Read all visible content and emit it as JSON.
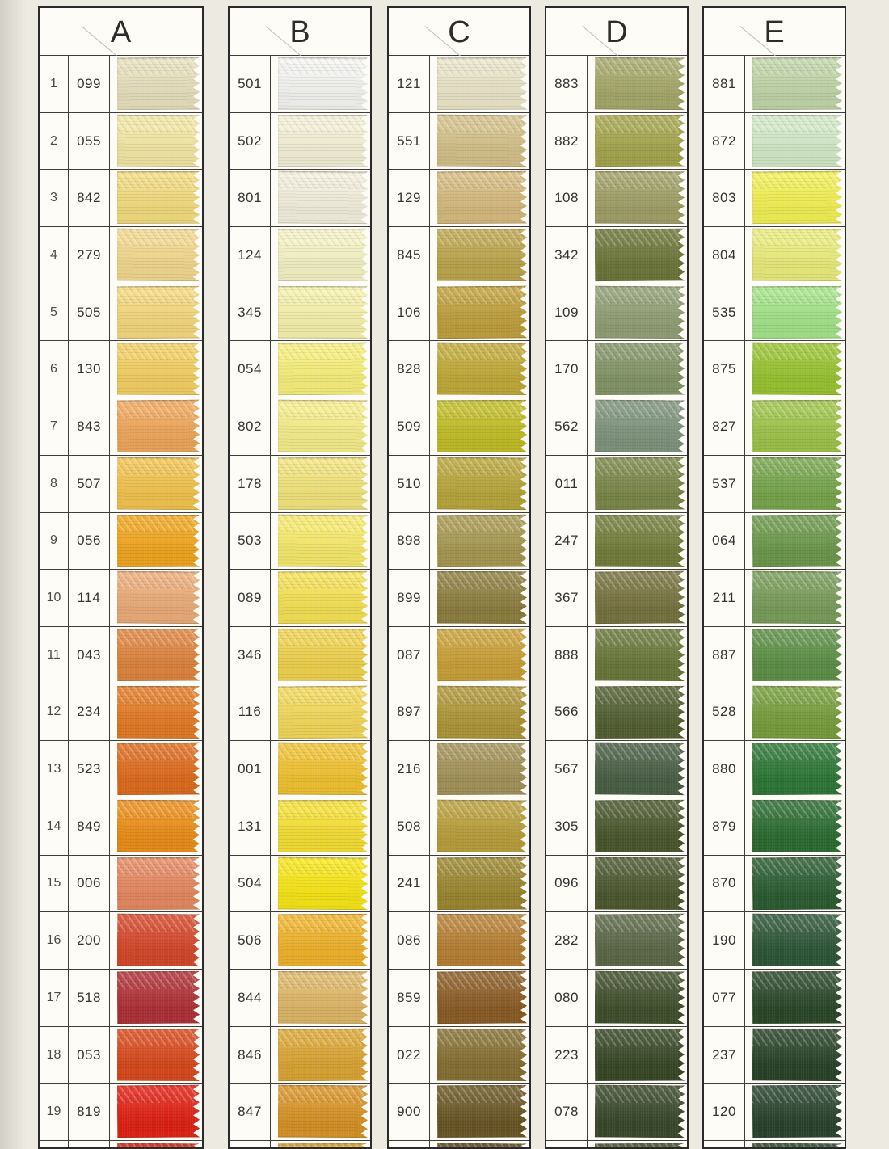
{
  "row_numbers": [
    "1",
    "2",
    "3",
    "4",
    "5",
    "6",
    "7",
    "8",
    "9",
    "10",
    "11",
    "12",
    "13",
    "14",
    "15",
    "16",
    "17",
    "18",
    "19"
  ],
  "columns": [
    {
      "letter": "A",
      "has_row_numbers": true,
      "swatches": [
        {
          "code": "099",
          "color": "#ebe3c0"
        },
        {
          "code": "055",
          "color": "#f6eba6"
        },
        {
          "code": "842",
          "color": "#f6df80"
        },
        {
          "code": "279",
          "color": "#f7dc90"
        },
        {
          "code": "505",
          "color": "#f9db7e"
        },
        {
          "code": "130",
          "color": "#f7d263"
        },
        {
          "code": "843",
          "color": "#f3a95c"
        },
        {
          "code": "507",
          "color": "#f6c64f"
        },
        {
          "code": "056",
          "color": "#f5a81e"
        },
        {
          "code": "114",
          "color": "#efae79"
        },
        {
          "code": "043",
          "color": "#e2863f"
        },
        {
          "code": "234",
          "color": "#e87c26"
        },
        {
          "code": "523",
          "color": "#e26d1e"
        },
        {
          "code": "849",
          "color": "#f09018"
        },
        {
          "code": "006",
          "color": "#e98a62"
        },
        {
          "code": "200",
          "color": "#d9482b"
        },
        {
          "code": "518",
          "color": "#b23138"
        },
        {
          "code": "053",
          "color": "#dd4a1d"
        },
        {
          "code": "819",
          "color": "#e52114"
        }
      ],
      "partial_next_color": "#da2312"
    },
    {
      "letter": "B",
      "has_row_numbers": false,
      "swatches": [
        {
          "code": "501",
          "color": "#f8f8f5"
        },
        {
          "code": "502",
          "color": "#f8f4da"
        },
        {
          "code": "801",
          "color": "#f7f3e1"
        },
        {
          "code": "124",
          "color": "#f9f6c8"
        },
        {
          "code": "345",
          "color": "#f9f4ad"
        },
        {
          "code": "054",
          "color": "#fbf37c"
        },
        {
          "code": "802",
          "color": "#faf18c"
        },
        {
          "code": "178",
          "color": "#f6e87d"
        },
        {
          "code": "503",
          "color": "#fbee6d"
        },
        {
          "code": "089",
          "color": "#f9e455"
        },
        {
          "code": "346",
          "color": "#f3d64e"
        },
        {
          "code": "116",
          "color": "#f7dc5a"
        },
        {
          "code": "001",
          "color": "#f5c631"
        },
        {
          "code": "131",
          "color": "#fae334"
        },
        {
          "code": "504",
          "color": "#fcea16"
        },
        {
          "code": "506",
          "color": "#f3b62a"
        },
        {
          "code": "844",
          "color": "#e2ba68"
        },
        {
          "code": "846",
          "color": "#dfa834"
        },
        {
          "code": "847",
          "color": "#dc9526"
        }
      ],
      "partial_next_color": "#e2a62e"
    },
    {
      "letter": "C",
      "has_row_numbers": false,
      "swatches": [
        {
          "code": "121",
          "color": "#eee8cb"
        },
        {
          "code": "551",
          "color": "#d8c48b"
        },
        {
          "code": "129",
          "color": "#d9bd7f"
        },
        {
          "code": "845",
          "color": "#bfa84e"
        },
        {
          "code": "106",
          "color": "#c2a23d"
        },
        {
          "code": "828",
          "color": "#c4ac38"
        },
        {
          "code": "509",
          "color": "#c5c026"
        },
        {
          "code": "510",
          "color": "#bba93c"
        },
        {
          "code": "898",
          "color": "#aa9b52"
        },
        {
          "code": "899",
          "color": "#8f8040"
        },
        {
          "code": "087",
          "color": "#cda338"
        },
        {
          "code": "897",
          "color": "#b29939"
        },
        {
          "code": "216",
          "color": "#a6955a"
        },
        {
          "code": "508",
          "color": "#bda23d"
        },
        {
          "code": "241",
          "color": "#9e8930"
        },
        {
          "code": "086",
          "color": "#ba8234"
        },
        {
          "code": "859",
          "color": "#8d5e26"
        },
        {
          "code": "022",
          "color": "#887233"
        },
        {
          "code": "900",
          "color": "#6c5826"
        }
      ],
      "partial_next_color": "#5c4a20"
    },
    {
      "letter": "D",
      "has_row_numbers": false,
      "swatches": [
        {
          "code": "883",
          "color": "#a8ab6b"
        },
        {
          "code": "882",
          "color": "#a8a84f"
        },
        {
          "code": "108",
          "color": "#a3a268"
        },
        {
          "code": "342",
          "color": "#6e783a"
        },
        {
          "code": "109",
          "color": "#93a277"
        },
        {
          "code": "170",
          "color": "#859768"
        },
        {
          "code": "562",
          "color": "#81977f"
        },
        {
          "code": "011",
          "color": "#7d894a"
        },
        {
          "code": "247",
          "color": "#75803c"
        },
        {
          "code": "367",
          "color": "#787440"
        },
        {
          "code": "888",
          "color": "#6c7a3b"
        },
        {
          "code": "566",
          "color": "#556233"
        },
        {
          "code": "567",
          "color": "#4b6147"
        },
        {
          "code": "305",
          "color": "#4c592e"
        },
        {
          "code": "096",
          "color": "#4e5930"
        },
        {
          "code": "282",
          "color": "#5e6a49"
        },
        {
          "code": "080",
          "color": "#41512d"
        },
        {
          "code": "223",
          "color": "#394927"
        },
        {
          "code": "078",
          "color": "#3a4a2b"
        }
      ],
      "partial_next_color": "#44522e"
    },
    {
      "letter": "E",
      "has_row_numbers": false,
      "swatches": [
        {
          "code": "881",
          "color": "#c3d8ab"
        },
        {
          "code": "872",
          "color": "#d6edca"
        },
        {
          "code": "803",
          "color": "#f7f455"
        },
        {
          "code": "804",
          "color": "#eef07d"
        },
        {
          "code": "535",
          "color": "#a6e78a"
        },
        {
          "code": "875",
          "color": "#9bc731"
        },
        {
          "code": "827",
          "color": "#a1c74b"
        },
        {
          "code": "537",
          "color": "#79a84e"
        },
        {
          "code": "064",
          "color": "#6e9b4d"
        },
        {
          "code": "211",
          "color": "#7a9f5b"
        },
        {
          "code": "887",
          "color": "#5e9247"
        },
        {
          "code": "528",
          "color": "#79a13d"
        },
        {
          "code": "880",
          "color": "#2e7937"
        },
        {
          "code": "879",
          "color": "#2d6e33"
        },
        {
          "code": "870",
          "color": "#2c5e32"
        },
        {
          "code": "190",
          "color": "#2f5839"
        },
        {
          "code": "077",
          "color": "#2b492b"
        },
        {
          "code": "237",
          "color": "#294429"
        },
        {
          "code": "120",
          "color": "#2a452f"
        }
      ],
      "partial_next_color": "#2d4a30"
    }
  ]
}
